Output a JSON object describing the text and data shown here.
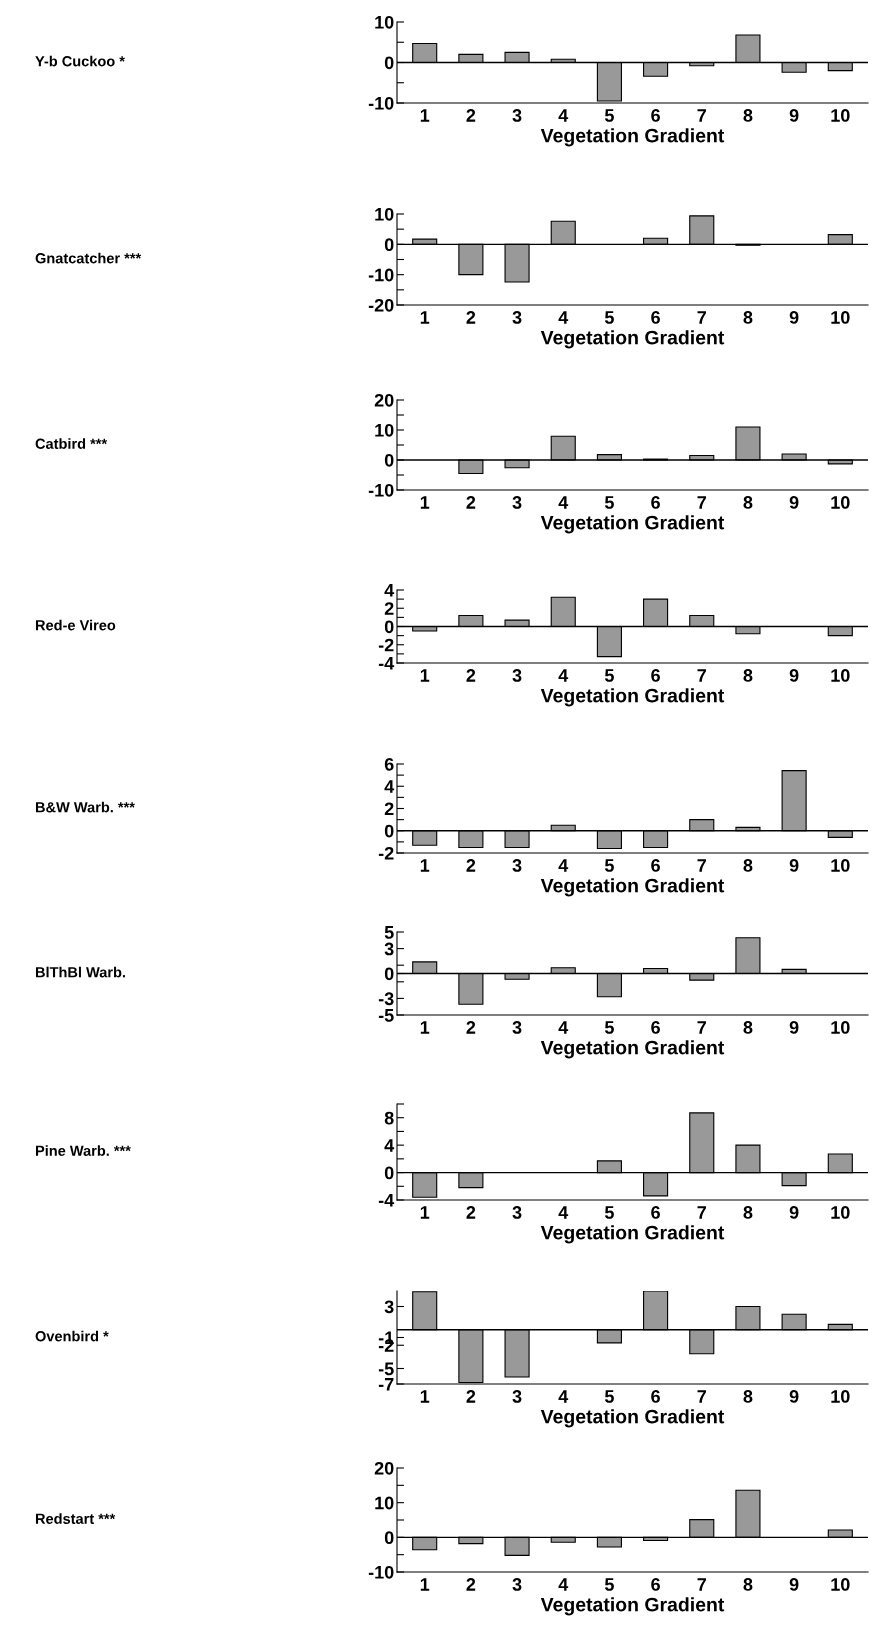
{
  "chart_data": [
    {
      "type": "bar",
      "ylabel": "Y-b Cuckoo *",
      "xlabel": "Vegetation Gradient",
      "categories": [
        "1",
        "2",
        "3",
        "4",
        "5",
        "6",
        "7",
        "8",
        "9",
        "10"
      ],
      "color": "#999999",
      "values": [
        4.7,
        2.0,
        2.5,
        0.8,
        -9.5,
        -3.4,
        -0.8,
        6.8,
        -2.4,
        -2.0
      ],
      "ylim": [
        -10,
        10
      ],
      "yticks": [
        -10,
        {
          "value": -5,
          "label": null
        },
        0,
        {
          "value": 5,
          "label": null
        },
        10
      ],
      "ref_lines": [
        {
          "axis": "y",
          "value": 0
        }
      ],
      "grid": false,
      "legend": false
    },
    {
      "type": "bar",
      "ylabel": "Gnatcatcher ***",
      "xlabel": "Vegetation Gradient",
      "categories": [
        "1",
        "2",
        "3",
        "4",
        "5",
        "6",
        "7",
        "8",
        "9",
        "10"
      ],
      "color": "#999999",
      "values": [
        1.7,
        -10.0,
        -12.4,
        7.6,
        null,
        2.0,
        9.4,
        -0.3,
        null,
        3.2
      ],
      "ylim": [
        -20,
        10
      ],
      "yticks": [
        -20,
        {
          "value": -15,
          "label": null
        },
        -10,
        {
          "value": -5,
          "label": null
        },
        0,
        {
          "value": 5,
          "label": null
        },
        10
      ],
      "ref_lines": [
        {
          "axis": "y",
          "value": 0
        }
      ],
      "grid": false,
      "legend": false
    },
    {
      "type": "bar",
      "ylabel": "Catbird ***",
      "xlabel": "Vegetation Gradient",
      "categories": [
        "1",
        "2",
        "3",
        "4",
        "5",
        "6",
        "7",
        "8",
        "9",
        "10"
      ],
      "color": "#999999",
      "values": [
        null,
        -4.5,
        -2.6,
        7.9,
        1.8,
        0.3,
        1.5,
        11.0,
        2.0,
        -1.3
      ],
      "ylim": [
        -10,
        20
      ],
      "yticks": [
        -10,
        {
          "value": -5,
          "label": null
        },
        0,
        {
          "value": 5,
          "label": null
        },
        10,
        {
          "value": 15,
          "label": null
        },
        20
      ],
      "ref_lines": [
        {
          "axis": "y",
          "value": 0
        }
      ],
      "grid": false,
      "legend": false
    },
    {
      "type": "bar",
      "ylabel": "Red-e Vireo",
      "xlabel": "Vegetation Gradient",
      "categories": [
        "1",
        "2",
        "3",
        "4",
        "5",
        "6",
        "7",
        "8",
        "9",
        "10"
      ],
      "color": "#999999",
      "values": [
        -0.5,
        1.2,
        0.7,
        3.2,
        -3.3,
        3.0,
        1.2,
        -0.8,
        null,
        -1.0
      ],
      "ylim": [
        -4,
        4
      ],
      "yticks": [
        -4,
        {
          "value": -3,
          "label": null
        },
        -2,
        {
          "value": -1,
          "label": null
        },
        0,
        {
          "value": 1,
          "label": null
        },
        2,
        {
          "value": 3,
          "label": null
        },
        4
      ],
      "ref_lines": [
        {
          "axis": "y",
          "value": 0
        }
      ],
      "grid": false,
      "legend": false
    },
    {
      "type": "bar",
      "ylabel": "B&W Warb. ***",
      "xlabel": "Vegetation Gradient",
      "categories": [
        "1",
        "2",
        "3",
        "4",
        "5",
        "6",
        "7",
        "8",
        "9",
        "10"
      ],
      "color": "#999999",
      "values": [
        -1.3,
        -1.5,
        -1.5,
        0.5,
        -1.6,
        -1.5,
        1.0,
        0.3,
        5.4,
        -0.6
      ],
      "ylim": [
        -2,
        6
      ],
      "yticks": [
        -2,
        {
          "value": -1,
          "label": null
        },
        0,
        {
          "value": 1,
          "label": null
        },
        2,
        {
          "value": 3,
          "label": null
        },
        4,
        {
          "value": 5,
          "label": null
        },
        6
      ],
      "ref_lines": [
        {
          "axis": "y",
          "value": 0
        }
      ],
      "grid": false,
      "legend": false
    },
    {
      "type": "bar",
      "ylabel": "BlThBl Warb.",
      "xlabel": "Vegetation Gradient",
      "categories": [
        "1",
        "2",
        "3",
        "4",
        "5",
        "6",
        "7",
        "8",
        "9",
        "10"
      ],
      "color": "#999999",
      "values": [
        1.4,
        -3.7,
        -0.7,
        0.7,
        -2.8,
        0.6,
        -0.8,
        4.3,
        0.5,
        null
      ],
      "ylim": [
        -5,
        5
      ],
      "yticks": [
        -5,
        -3,
        {
          "value": -1,
          "label": null
        },
        0,
        {
          "value": 1,
          "label": null
        },
        3,
        5
      ],
      "ref_lines": [
        {
          "axis": "y",
          "value": 0
        }
      ],
      "grid": false,
      "legend": false
    },
    {
      "type": "bar",
      "ylabel": "Pine Warb. ***",
      "xlabel": "Vegetation Gradient",
      "categories": [
        "1",
        "2",
        "3",
        "4",
        "5",
        "6",
        "7",
        "8",
        "9",
        "10"
      ],
      "color": "#999999",
      "values": [
        -3.6,
        -2.2,
        null,
        null,
        1.7,
        -3.4,
        8.7,
        4.0,
        -1.9,
        2.7
      ],
      "ylim": [
        -4,
        10
      ],
      "yticks": [
        -4,
        {
          "value": -2,
          "label": null
        },
        0,
        {
          "value": 2,
          "label": null
        },
        4,
        {
          "value": 6,
          "label": null
        },
        8,
        {
          "value": 10,
          "label": null
        }
      ],
      "ref_lines": [
        {
          "axis": "y",
          "value": 0
        }
      ],
      "grid": false,
      "legend": false
    },
    {
      "type": "bar",
      "ylabel": "Ovenbird *",
      "xlabel": "Vegetation Gradient",
      "categories": [
        "1",
        "2",
        "3",
        "4",
        "5",
        "6",
        "7",
        "8",
        "9",
        "10"
      ],
      "color": "#999999",
      "values": [
        4.9,
        -6.8,
        -6.1,
        null,
        -1.7,
        5.0,
        -3.1,
        3.0,
        2.0,
        0.7
      ],
      "ylim": [
        -7,
        5
      ],
      "yticks": [
        -7,
        -5,
        -2,
        -1,
        3
      ],
      "ref_lines": [
        {
          "axis": "y",
          "value": 0
        }
      ],
      "grid": false,
      "legend": false
    },
    {
      "type": "bar",
      "ylabel": "Redstart ***",
      "xlabel": "Vegetation Gradient",
      "categories": [
        "1",
        "2",
        "3",
        "4",
        "5",
        "6",
        "7",
        "8",
        "9",
        "10"
      ],
      "color": "#999999",
      "values": [
        -3.6,
        -1.8,
        -5.2,
        -1.4,
        -2.8,
        -0.9,
        5.1,
        13.6,
        null,
        2.1
      ],
      "ylim": [
        -10,
        20
      ],
      "yticks": [
        -10,
        {
          "value": -5,
          "label": null
        },
        0,
        {
          "value": 5,
          "label": null
        },
        10,
        {
          "value": 15,
          "label": null
        },
        20
      ],
      "ref_lines": [
        {
          "axis": "y",
          "value": 0
        }
      ],
      "grid": false,
      "legend": false
    }
  ]
}
